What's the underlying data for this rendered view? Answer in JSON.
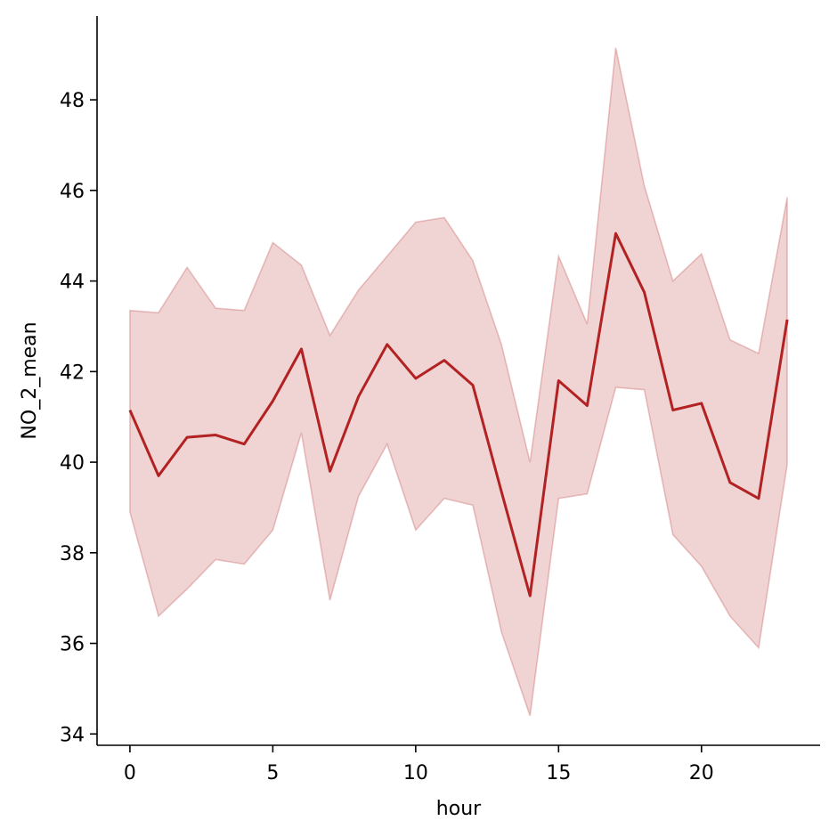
{
  "chart_data": {
    "type": "line",
    "title": "",
    "xlabel": "hour",
    "ylabel": "NO_2_mean",
    "xlim": [
      -1.15,
      24.15
    ],
    "ylim": [
      33.75,
      49.85
    ],
    "x_ticks": [
      0,
      5,
      10,
      15,
      20
    ],
    "y_ticks": [
      34,
      36,
      38,
      40,
      42,
      44,
      46,
      48
    ],
    "grid": false,
    "legend": "none",
    "series": [
      {
        "x": [
          0,
          1,
          2,
          3,
          4,
          5,
          6,
          7,
          8,
          9,
          10,
          11,
          12,
          13,
          14,
          15,
          16,
          17,
          18,
          19,
          20,
          21,
          22,
          23
        ],
        "values": [
          41.15,
          39.7,
          40.55,
          40.6,
          40.4,
          41.35,
          42.5,
          39.8,
          41.45,
          42.6,
          41.85,
          42.25,
          41.7,
          39.35,
          37.05,
          41.8,
          41.25,
          45.05,
          43.75,
          41.15,
          41.3,
          39.55,
          39.2,
          43.15
        ],
        "ci_upper": [
          43.35,
          43.3,
          44.3,
          43.4,
          43.35,
          44.85,
          44.35,
          42.8,
          43.8,
          44.55,
          45.3,
          45.4,
          44.45,
          42.6,
          40.0,
          44.55,
          43.05,
          49.15,
          46.1,
          44.0,
          44.6,
          42.7,
          42.4,
          45.85
        ],
        "ci_lower": [
          38.9,
          36.6,
          37.2,
          37.85,
          37.75,
          38.5,
          40.65,
          36.95,
          39.25,
          40.4,
          38.5,
          39.2,
          39.05,
          36.25,
          34.4,
          39.2,
          39.3,
          41.65,
          41.6,
          38.4,
          37.7,
          36.6,
          35.9,
          39.95
        ]
      }
    ]
  },
  "colors": {
    "line": "#b22222",
    "band_fill": "#b22222",
    "band_fill_opacity": 0.2,
    "band_edge_opacity": 0.25,
    "axis": "#000000"
  }
}
